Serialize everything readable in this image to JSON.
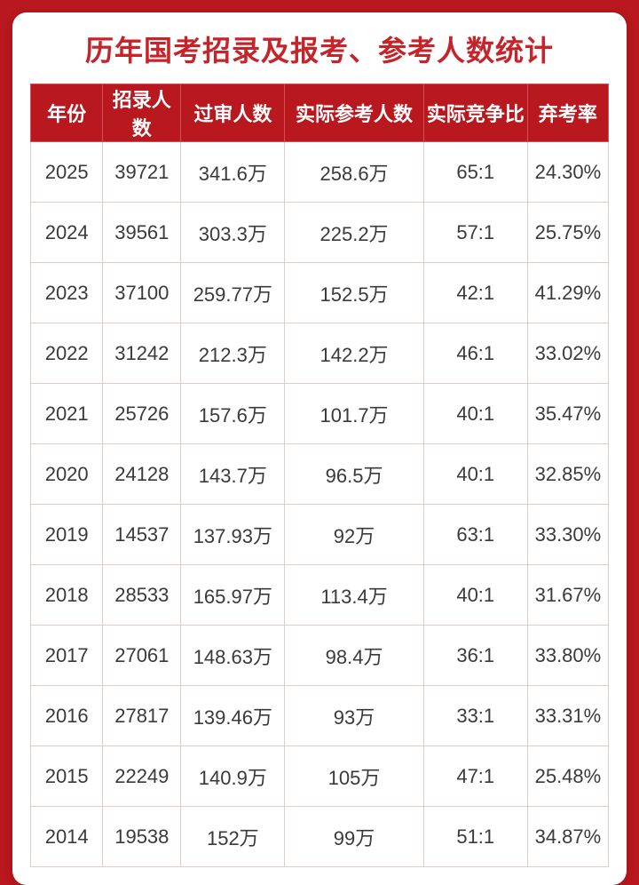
{
  "title": "历年国考招录及报考、参考人数统计",
  "table": {
    "type": "table",
    "header_bg": "#b8181e",
    "header_text_color": "#ffffff",
    "card_bg": "#ffffff",
    "page_bg": "#b8181e",
    "title_color": "#c6242b",
    "cell_text_color": "#3a3a3a",
    "border_color": "#e2c9c9",
    "title_fontsize": 32,
    "header_fontsize": 22,
    "cell_fontsize": 22,
    "columns": [
      "年份",
      "招录人数",
      "过审人数",
      "实际参考人数",
      "实际竞争比",
      "弃考率"
    ],
    "col_widths_pct": [
      12.5,
      13.5,
      18,
      24,
      18,
      14
    ],
    "rows": [
      [
        "2025",
        "39721",
        "341.6万",
        "258.6万",
        "65:1",
        "24.30%"
      ],
      [
        "2024",
        "39561",
        "303.3万",
        "225.2万",
        "57:1",
        "25.75%"
      ],
      [
        "2023",
        "37100",
        "259.77万",
        "152.5万",
        "42:1",
        "41.29%"
      ],
      [
        "2022",
        "31242",
        "212.3万",
        "142.2万",
        "46:1",
        "33.02%"
      ],
      [
        "2021",
        "25726",
        "157.6万",
        "101.7万",
        "40:1",
        "35.47%"
      ],
      [
        "2020",
        "24128",
        "143.7万",
        "96.5万",
        "40:1",
        "32.85%"
      ],
      [
        "2019",
        "14537",
        "137.93万",
        "92万",
        "63:1",
        "33.30%"
      ],
      [
        "2018",
        "28533",
        "165.97万",
        "113.4万",
        "40:1",
        "31.67%"
      ],
      [
        "2017",
        "27061",
        "148.63万",
        "98.4万",
        "36:1",
        "33.80%"
      ],
      [
        "2016",
        "27817",
        "139.46万",
        "93万",
        "33:1",
        "33.31%"
      ],
      [
        "2015",
        "22249",
        "140.9万",
        "105万",
        "47:1",
        "25.48%"
      ],
      [
        "2014",
        "19538",
        "152万",
        "99万",
        "51:1",
        "34.87%"
      ]
    ]
  }
}
